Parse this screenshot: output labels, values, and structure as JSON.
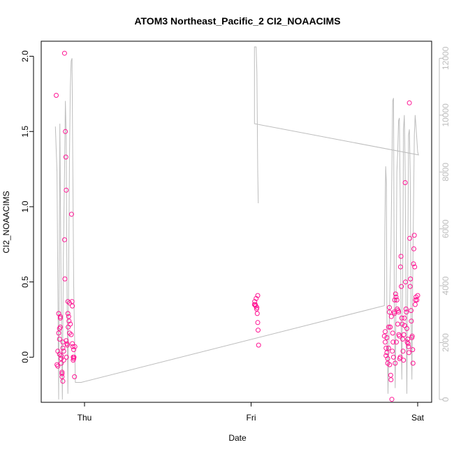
{
  "chart_data": {
    "type": "scatter",
    "title": "ATOM3 Northeast_Pacific_2 CI2_NOAACIMS",
    "xlabel": "Date",
    "ylabel": "CI2_NOAACIMS",
    "x_ticks": [
      "Thu",
      "Fri",
      "Sat"
    ],
    "ylim": [
      -0.3,
      2.1
    ],
    "y_ticks": [
      "0.0",
      "0.5",
      "1.0",
      "1.5",
      "2.0"
    ],
    "y2lim": [
      -100,
      12600
    ],
    "y2_ticks": [
      "0",
      "2000",
      "4000",
      "6000",
      "8000",
      "10000",
      "12000"
    ],
    "grid": false,
    "legend": "none",
    "colors": {
      "points": "#ff1493",
      "line": "#bdbdbd",
      "axes": "#000000",
      "axis2": "#bdbdbd"
    },
    "series": [
      {
        "kind": "points",
        "points": [
          [
            -0.17,
            1.74
          ],
          [
            -0.165,
            -0.05
          ],
          [
            -0.16,
            -0.06
          ],
          [
            -0.16,
            0.04
          ],
          [
            -0.155,
            0.16
          ],
          [
            -0.155,
            0.29
          ],
          [
            -0.15,
            0.19
          ],
          [
            -0.15,
            0.12
          ],
          [
            -0.15,
            0.02
          ],
          [
            -0.145,
            0.26
          ],
          [
            -0.145,
            0.27
          ],
          [
            -0.145,
            0.2
          ],
          [
            -0.14,
            -0.01
          ],
          [
            -0.14,
            0.01
          ],
          [
            -0.14,
            -0.04
          ],
          [
            -0.135,
            -0.1
          ],
          [
            -0.135,
            -0.13
          ],
          [
            -0.135,
            -0.11
          ],
          [
            -0.13,
            -0.16
          ],
          [
            -0.13,
            0.06
          ],
          [
            -0.13,
            0.1
          ],
          [
            -0.125,
            0.04
          ],
          [
            -0.125,
            -0.02
          ],
          [
            -0.12,
            2.02
          ],
          [
            -0.12,
            0.78
          ],
          [
            -0.118,
            0.52
          ],
          [
            -0.115,
            1.5
          ],
          [
            -0.112,
            1.33
          ],
          [
            -0.11,
            1.11
          ],
          [
            -0.11,
            0.11
          ],
          [
            -0.108,
            0.0
          ],
          [
            -0.105,
            0.09
          ],
          [
            -0.103,
            0.08
          ],
          [
            -0.1,
            0.37
          ],
          [
            -0.1,
            0.29
          ],
          [
            -0.098,
            0.2
          ],
          [
            -0.095,
            0.27
          ],
          [
            -0.093,
            0.24
          ],
          [
            -0.09,
            0.36
          ],
          [
            -0.09,
            0.16
          ],
          [
            -0.085,
            0.22
          ],
          [
            -0.08,
            0.15
          ],
          [
            -0.078,
            0.95
          ],
          [
            -0.075,
            0.37
          ],
          [
            -0.073,
            0.34
          ],
          [
            -0.073,
            0.09
          ],
          [
            -0.07,
            0.07
          ],
          [
            -0.068,
            0.0
          ],
          [
            -0.068,
            -0.02
          ],
          [
            -0.065,
            0.05
          ],
          [
            -0.065,
            -0.01
          ],
          [
            -0.063,
            0.0
          ],
          [
            -0.06,
            -0.13
          ],
          [
            -0.058,
            0.07
          ],
          [
            1.02,
            0.35
          ],
          [
            1.022,
            0.37
          ],
          [
            1.025,
            0.35
          ],
          [
            1.028,
            0.34
          ],
          [
            1.03,
            0.39
          ],
          [
            1.033,
            0.32
          ],
          [
            1.035,
            0.33
          ],
          [
            1.037,
            0.29
          ],
          [
            1.04,
            0.41
          ],
          [
            1.04,
            0.23
          ],
          [
            1.042,
            0.18
          ],
          [
            1.045,
            0.08
          ],
          [
            1.8,
            0.14
          ],
          [
            1.805,
            0.17
          ],
          [
            1.805,
            0.1
          ],
          [
            1.81,
            0.06
          ],
          [
            1.81,
            0.01
          ],
          [
            1.815,
            0.13
          ],
          [
            1.815,
            0.03
          ],
          [
            1.82,
            -0.01
          ],
          [
            1.82,
            -0.04
          ],
          [
            1.825,
            0.06
          ],
          [
            1.825,
            0.2
          ],
          [
            1.83,
            0.3
          ],
          [
            1.83,
            0.33
          ],
          [
            1.832,
            -0.05
          ],
          [
            1.835,
            0.2
          ],
          [
            1.835,
            0.2
          ],
          [
            1.838,
            -0.12
          ],
          [
            1.84,
            -0.15
          ],
          [
            1.842,
            0.27
          ],
          [
            1.845,
            -0.28
          ],
          [
            1.848,
            0.04
          ],
          [
            1.85,
            0.16
          ],
          [
            1.852,
            0.1
          ],
          [
            1.855,
            0.0
          ],
          [
            1.858,
            0.3
          ],
          [
            1.86,
            0.29
          ],
          [
            1.862,
            0.38
          ],
          [
            1.865,
            -0.04
          ],
          [
            1.867,
            0.42
          ],
          [
            1.87,
            0.4
          ],
          [
            1.872,
            0.1
          ],
          [
            1.875,
            0.38
          ],
          [
            1.877,
            0.32
          ],
          [
            1.88,
            0.22
          ],
          [
            1.882,
            0.31
          ],
          [
            1.885,
            0.3
          ],
          [
            1.887,
            0.15
          ],
          [
            1.89,
            0.14
          ],
          [
            1.892,
            -0.01
          ],
          [
            1.895,
            0.0
          ],
          [
            1.897,
            0.6
          ],
          [
            1.9,
            0.67
          ],
          [
            1.902,
            0.47
          ],
          [
            1.905,
            0.26
          ],
          [
            1.907,
            0.22
          ],
          [
            1.91,
            0.12
          ],
          [
            1.912,
            0.04
          ],
          [
            1.915,
            -0.02
          ],
          [
            1.917,
            0.15
          ],
          [
            1.92,
            0.26
          ],
          [
            1.922,
            0.21
          ],
          [
            1.925,
            1.16
          ],
          [
            1.927,
            0.5
          ],
          [
            1.93,
            0.32
          ],
          [
            1.932,
            0.3
          ],
          [
            1.935,
            0.19
          ],
          [
            1.937,
            0.1
          ],
          [
            1.94,
            0.12
          ],
          [
            1.942,
            0.09
          ],
          [
            1.945,
            0.07
          ],
          [
            1.947,
            0.03
          ],
          [
            1.95,
            1.69
          ],
          [
            1.952,
            0.79
          ],
          [
            1.955,
            0.47
          ],
          [
            1.957,
            0.52
          ],
          [
            1.96,
            0.31
          ],
          [
            1.962,
            0.24
          ],
          [
            1.965,
            0.13
          ],
          [
            1.967,
            0.14
          ],
          [
            1.97,
            0.05
          ],
          [
            1.972,
            -0.04
          ],
          [
            1.975,
            0.62
          ],
          [
            1.977,
            0.72
          ],
          [
            1.98,
            0.81
          ],
          [
            1.982,
            0.6
          ],
          [
            1.985,
            0.35
          ],
          [
            1.987,
            0.38
          ],
          [
            1.99,
            0.4
          ],
          [
            1.995,
            0.38
          ],
          [
            2.0,
            0.41
          ]
        ]
      },
      {
        "kind": "line",
        "axis": "y2",
        "points": [
          [
            -0.175,
            9600
          ],
          [
            -0.165,
            8000
          ],
          [
            -0.155,
            0
          ],
          [
            -0.148,
            9700
          ],
          [
            -0.14,
            3500
          ],
          [
            -0.133,
            0
          ],
          [
            -0.127,
            5000
          ],
          [
            -0.12,
            8000
          ],
          [
            -0.115,
            10500
          ],
          [
            -0.11,
            9200
          ],
          [
            -0.105,
            3500
          ],
          [
            -0.1,
            200
          ],
          [
            -0.095,
            4500
          ],
          [
            -0.09,
            8500
          ],
          [
            -0.085,
            11000
          ],
          [
            -0.08,
            11900
          ],
          [
            -0.075,
            12000
          ],
          [
            -0.07,
            8000
          ],
          [
            -0.065,
            4000
          ],
          [
            -0.06,
            2300
          ],
          [
            -0.055,
            600
          ],
          [
            -0.02,
            600
          ],
          [
            1.8,
            3300
          ],
          [
            1.803,
            6000
          ],
          [
            1.808,
            8200
          ],
          [
            1.812,
            7600
          ],
          [
            1.815,
            3000
          ],
          [
            1.822,
            200
          ],
          [
            1.83,
            3000
          ],
          [
            1.84,
            5500
          ],
          [
            1.85,
            10500
          ],
          [
            1.855,
            10600
          ],
          [
            1.86,
            3000
          ],
          [
            1.865,
            400
          ],
          [
            1.87,
            3500
          ],
          [
            1.875,
            8000
          ],
          [
            1.88,
            8700
          ],
          [
            1.885,
            9800
          ],
          [
            1.89,
            9900
          ],
          [
            1.895,
            7000
          ],
          [
            1.9,
            3000
          ],
          [
            1.905,
            700
          ],
          [
            1.91,
            4000
          ],
          [
            1.915,
            9500
          ],
          [
            1.92,
            10000
          ],
          [
            1.925,
            8000
          ],
          [
            1.93,
            3000
          ],
          [
            1.935,
            200
          ],
          [
            1.94,
            4000
          ],
          [
            1.945,
            9300
          ],
          [
            1.95,
            9500
          ],
          [
            1.955,
            8000
          ],
          [
            1.96,
            3000
          ],
          [
            1.965,
            700
          ],
          [
            1.97,
            4000
          ],
          [
            1.98,
            9300
          ],
          [
            1.985,
            10000
          ],
          [
            1.99,
            9600
          ],
          [
            2.0,
            8700
          ],
          [
            2.005,
            8600
          ],
          [
            1.02,
            9700
          ],
          [
            1.02,
            12400
          ],
          [
            1.025,
            12400
          ],
          [
            1.03,
            12400
          ],
          [
            1.035,
            11500
          ],
          [
            1.04,
            8000
          ],
          [
            1.043,
            6900
          ]
        ]
      }
    ]
  }
}
